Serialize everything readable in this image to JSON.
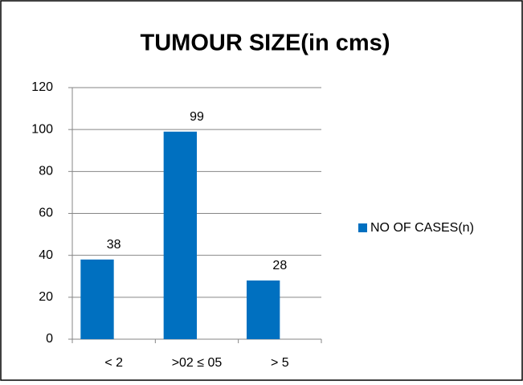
{
  "chart_data": {
    "type": "bar",
    "title": "TUMOUR SIZE(in cms)",
    "categories": [
      "< 2",
      ">02 ≤ 05",
      "> 5"
    ],
    "series": [
      {
        "name": "NO OF CASES(n)",
        "color": "#0070c0",
        "values": [
          38,
          99,
          28
        ]
      }
    ],
    "ylim": [
      0,
      120
    ],
    "yticks": [
      0,
      20,
      40,
      60,
      80,
      100,
      120
    ],
    "grid": true,
    "legend": "right",
    "data_labels": true
  }
}
